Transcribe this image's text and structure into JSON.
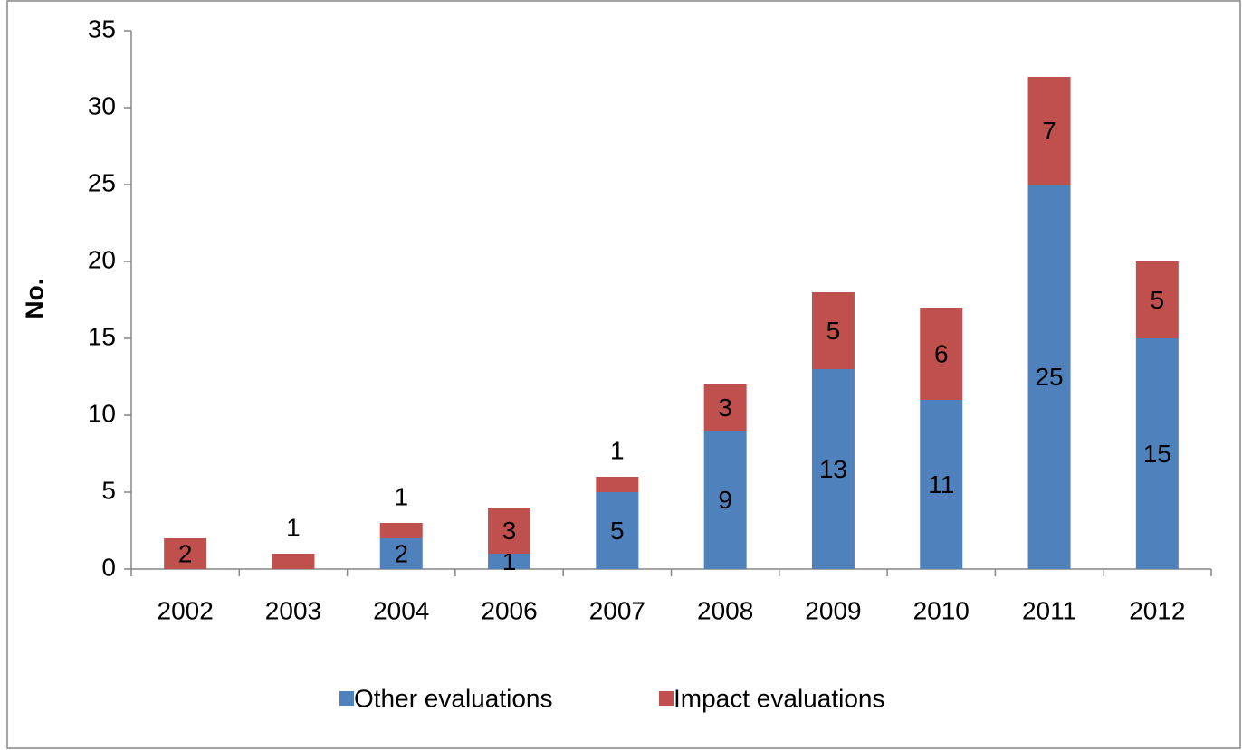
{
  "chart_data": {
    "type": "stacked_bar",
    "categories": [
      "2002",
      "2003",
      "2004",
      "2006",
      "2007",
      "2008",
      "2009",
      "2010",
      "2011",
      "2012"
    ],
    "series": [
      {
        "name": "Other evaluations",
        "color": "#4f81bd",
        "values": [
          0,
          0,
          2,
          1,
          5,
          9,
          13,
          11,
          25,
          15
        ]
      },
      {
        "name": "Impact evaluations",
        "color": "#c0504d",
        "values": [
          2,
          1,
          1,
          3,
          1,
          3,
          5,
          6,
          7,
          5
        ]
      }
    ],
    "y_label": "No.",
    "ylim": [
      0,
      35
    ],
    "yticks": [
      0,
      5,
      10,
      15,
      20,
      25,
      30,
      35
    ],
    "legend": "bottom"
  }
}
